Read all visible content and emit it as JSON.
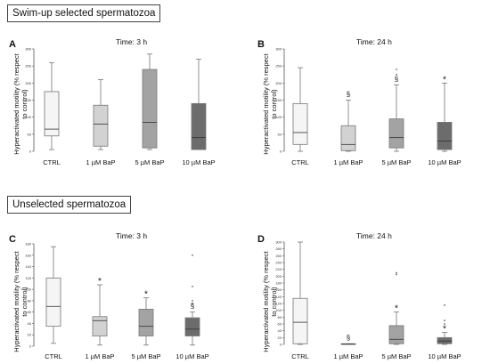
{
  "sections": [
    {
      "title": "Swim-up selected spermatozoa"
    },
    {
      "title": "Unselected spermatozoa"
    }
  ],
  "chart_data": [
    {
      "id": "A",
      "type": "boxplot",
      "title": "Time: 3 h",
      "ylabel": "Hyperactivated motility (% respect to control)",
      "categories": [
        "CTRL",
        "1 µM BaP",
        "5 µM BaP",
        "10 µM BaP"
      ],
      "colors": [
        "#f5f5f5",
        "#d2d2d2",
        "#a3a3a3",
        "#6c6c6c"
      ],
      "ylim": [
        0,
        300
      ],
      "yticks": [
        "0",
        "50",
        "100",
        "150",
        "200",
        "250",
        "300"
      ],
      "boxes": [
        {
          "min": 5,
          "q1": 45,
          "median": 65,
          "q3": 175,
          "max": 260
        },
        {
          "min": 5,
          "q1": 15,
          "median": 80,
          "q3": 135,
          "max": 210
        },
        {
          "min": 5,
          "q1": 10,
          "median": 85,
          "q3": 240,
          "max": 285
        },
        {
          "min": 5,
          "q1": 5,
          "median": 40,
          "q3": 140,
          "max": 270
        }
      ],
      "outliers": [],
      "annotations": []
    },
    {
      "id": "B",
      "type": "boxplot",
      "title": "Time: 24 h",
      "ylabel": "Hyperactivated motility (% respect to control)",
      "categories": [
        "CTRL",
        "1 µM BaP",
        "5 µM BaP",
        "10 µM BaP"
      ],
      "colors": [
        "#f5f5f5",
        "#d2d2d2",
        "#a3a3a3",
        "#6c6c6c"
      ],
      "ylim": [
        0,
        300
      ],
      "yticks": [
        "0",
        "50",
        "100",
        "150",
        "200",
        "250",
        "300"
      ],
      "boxes": [
        {
          "min": 0,
          "q1": 20,
          "median": 55,
          "q3": 140,
          "max": 245
        },
        {
          "min": 0,
          "q1": 2,
          "median": 20,
          "q3": 75,
          "max": 150
        },
        {
          "min": 0,
          "q1": 10,
          "median": 40,
          "q3": 95,
          "max": 195
        },
        {
          "min": 0,
          "q1": 5,
          "median": 30,
          "q3": 85,
          "max": 200
        }
      ],
      "outliers": [
        {
          "group": 2,
          "value": 240
        },
        {
          "group": 2,
          "value": 225
        }
      ],
      "annotations": [
        {
          "group": 1,
          "text": "§"
        },
        {
          "group": 2,
          "text": "§"
        },
        {
          "group": 3,
          "text": "*"
        }
      ]
    },
    {
      "id": "C",
      "type": "boxplot",
      "title": "Time: 3 h",
      "ylabel": "Hyperactivated motility (% respect to control)",
      "categories": [
        "CTRL",
        "1 µM BaP",
        "5 µM BaP",
        "10 µM BaP"
      ],
      "colors": [
        "#f5f5f5",
        "#d2d2d2",
        "#a3a3a3",
        "#6c6c6c"
      ],
      "ylim": [
        0,
        180
      ],
      "yticks": [
        "0",
        "20",
        "40",
        "60",
        "80",
        "100",
        "120",
        "140",
        "160",
        "180"
      ],
      "boxes": [
        {
          "min": 5,
          "q1": 35,
          "median": 70,
          "q3": 120,
          "max": 175
        },
        {
          "min": 2,
          "q1": 18,
          "median": 45,
          "q3": 52,
          "max": 108
        },
        {
          "min": 2,
          "q1": 18,
          "median": 35,
          "q3": 65,
          "max": 85
        },
        {
          "min": 2,
          "q1": 18,
          "median": 30,
          "q3": 50,
          "max": 60
        }
      ],
      "outliers": [
        {
          "group": 3,
          "value": 160
        },
        {
          "group": 3,
          "value": 105
        },
        {
          "group": 3,
          "value": 80
        },
        {
          "group": 3,
          "value": 75
        }
      ],
      "annotations": [
        {
          "group": 1,
          "text": "*"
        },
        {
          "group": 2,
          "text": "*"
        },
        {
          "group": 3,
          "text": "§"
        }
      ]
    },
    {
      "id": "D",
      "type": "boxplot",
      "title": "Time: 24 h",
      "ylabel": "Hyperactivated motility (% respect to control)",
      "categories": [
        "CTRL",
        "1 µM BaP",
        "5 µM BaP",
        "10 µM BaP"
      ],
      "colors": [
        "#f5f5f5",
        "#d2d2d2",
        "#a3a3a3",
        "#6c6c6c"
      ],
      "ylim": [
        0,
        300
      ],
      "yticks": [
        "0",
        "20",
        "40",
        "60",
        "80",
        "100",
        "120",
        "140",
        "160",
        "180",
        "200",
        "220",
        "240",
        "260",
        "280",
        "300"
      ],
      "boxes": [
        {
          "min": 0,
          "q1": 2,
          "median": 65,
          "q3": 135,
          "max": 300
        },
        {
          "min": 0,
          "q1": 0,
          "median": 1,
          "q3": 2,
          "max": 2
        },
        {
          "min": 0,
          "q1": 2,
          "median": 15,
          "q3": 55,
          "max": 95
        },
        {
          "min": 0,
          "q1": 2,
          "median": 10,
          "q3": 20,
          "max": 35
        }
      ],
      "outliers": [
        {
          "group": 2,
          "value": 210
        },
        {
          "group": 2,
          "value": 205
        },
        {
          "group": 3,
          "value": 115
        },
        {
          "group": 3,
          "value": 70
        },
        {
          "group": 3,
          "value": 60
        }
      ],
      "annotations": [
        {
          "group": 1,
          "text": "§"
        },
        {
          "group": 2,
          "text": "*"
        },
        {
          "group": 3,
          "text": "*"
        }
      ]
    }
  ]
}
